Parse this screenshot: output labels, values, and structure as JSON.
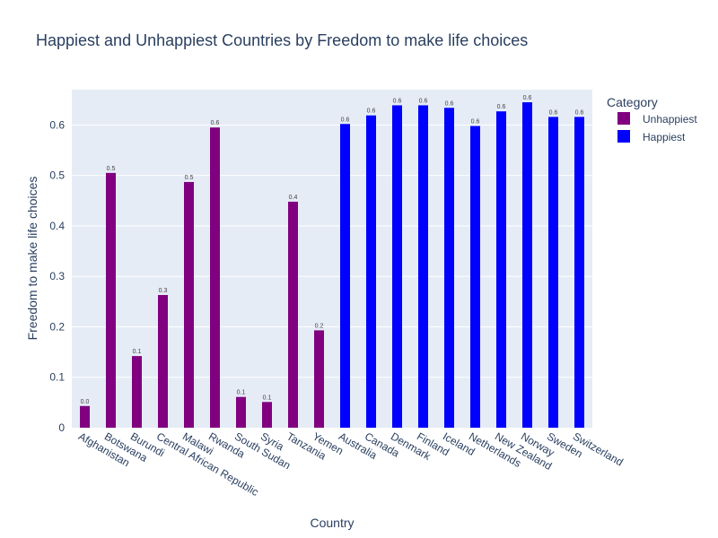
{
  "chart_data": {
    "type": "bar",
    "title": "Happiest and Unhappiest Countries by Freedom to make life choices",
    "xlabel": "Country",
    "ylabel": "Freedom to make life choices",
    "ylim": [
      0,
      0.67
    ],
    "yticks": [
      0,
      0.1,
      0.2,
      0.3,
      0.4,
      0.5,
      0.6
    ],
    "ytick_labels": [
      "0",
      "0.1",
      "0.2",
      "0.3",
      "0.4",
      "0.5",
      "0.6"
    ],
    "grid": true,
    "legend": {
      "title": "Category",
      "placement": "right"
    },
    "categories": [
      "Afghanistan",
      "Botswana",
      "Burundi",
      "Central African Republic",
      "Malawi",
      "Rwanda",
      "South Sudan",
      "Syria",
      "Tanzania",
      "Yemen",
      "Australia",
      "Canada",
      "Denmark",
      "Finland",
      "Iceland",
      "Netherlands",
      "New Zealand",
      "Norway",
      "Sweden",
      "Switzerland"
    ],
    "series": [
      {
        "name": "Unhappiest",
        "color": "#800080",
        "values": [
          0.043,
          0.505,
          0.142,
          0.263,
          0.487,
          0.595,
          0.061,
          0.051,
          0.448,
          0.193,
          null,
          null,
          null,
          null,
          null,
          null,
          null,
          null,
          null,
          null
        ],
        "labels": [
          "0.0",
          "0.5",
          "0.1",
          "0.3",
          "0.5",
          "0.6",
          "0.1",
          "0.1",
          "0.4",
          "0.2",
          "",
          "",
          "",
          "",
          "",
          "",
          "",
          "",
          "",
          ""
        ]
      },
      {
        "name": "Happiest",
        "color": "#0000ff",
        "values": [
          null,
          null,
          null,
          null,
          null,
          null,
          null,
          null,
          null,
          null,
          0.602,
          0.619,
          0.639,
          0.639,
          0.634,
          0.598,
          0.627,
          0.645,
          0.616,
          0.616
        ],
        "labels": [
          "",
          "",
          "",
          "",
          "",
          "",
          "",
          "",
          "",
          "",
          "0.6",
          "0.6",
          "0.6",
          "0.6",
          "0.6",
          "0.6",
          "0.6",
          "0.6",
          "0.6",
          "0.6"
        ]
      }
    ]
  }
}
